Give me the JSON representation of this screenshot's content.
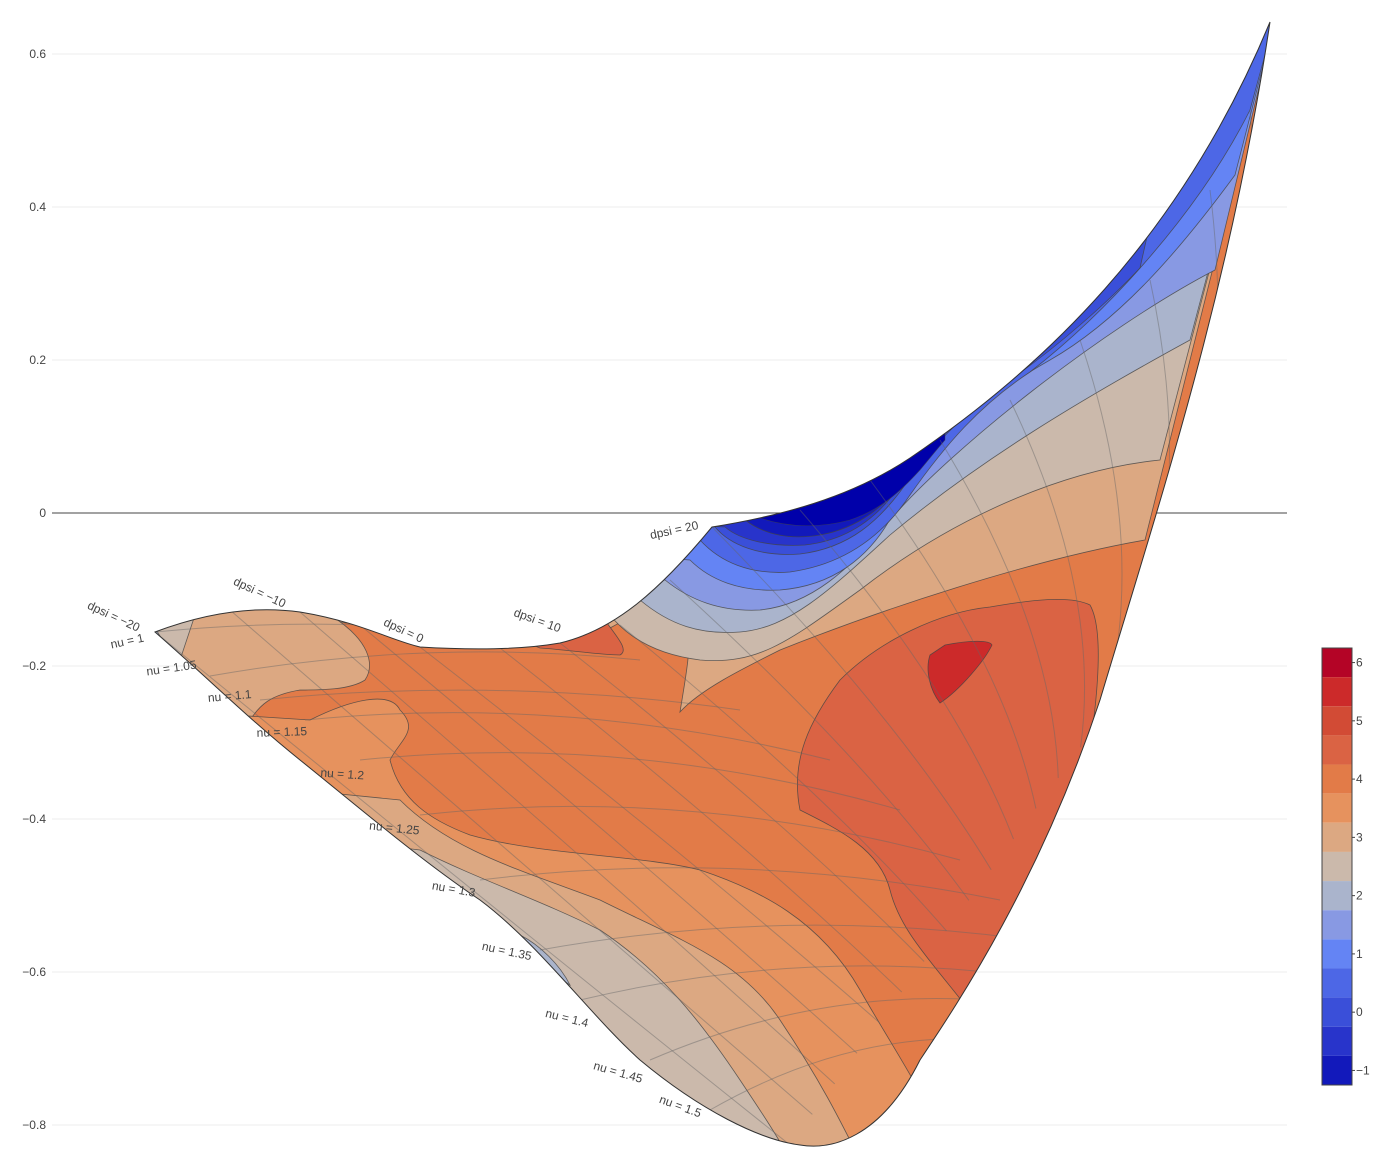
{
  "chart_data": {
    "type": "contour",
    "subtype": "carpet contour (filled)",
    "title": "",
    "xlabel": "",
    "ylabel": "",
    "ylim": [
      -0.82,
      0.65
    ],
    "y_ticks": [
      0.6,
      0.4,
      0.2,
      0,
      -0.2,
      -0.4,
      -0.6,
      -0.8
    ],
    "y_tick_labels": [
      "0.6",
      "0.4",
      "0.2",
      "0",
      "−0.2",
      "−0.4",
      "−0.6",
      "−0.8"
    ],
    "grid": true,
    "zero_line": true,
    "carpet": {
      "a_param": "dpsi",
      "a_values": [
        -20,
        -10,
        0,
        10,
        20
      ],
      "a_labels": [
        "dpsi = −20",
        "dpsi = −10",
        "dpsi = 0",
        "dpsi = 10",
        "dpsi = 20"
      ],
      "b_param": "nu",
      "b_values": [
        1,
        1.05,
        1.1,
        1.15,
        1.2,
        1.25,
        1.3,
        1.35,
        1.4,
        1.45,
        1.5
      ],
      "b_labels": [
        "nu = 1",
        "nu = 1.05",
        "nu = 1.1",
        "nu = 1.15",
        "nu = 1.2",
        "nu = 1.25",
        "nu = 1.3",
        "nu = 1.35",
        "nu = 1.4",
        "nu = 1.45",
        "nu = 1.5"
      ]
    },
    "colorbar": {
      "ticks": [
        6,
        5,
        4,
        3,
        2,
        1,
        0,
        -1
      ],
      "tick_labels": [
        "6",
        "5",
        "4",
        "3",
        "2",
        "1",
        "0",
        "−1"
      ],
      "range": [
        -1.25,
        6.25
      ],
      "contour_step": 0.5,
      "bands": [
        {
          "level": 6.0,
          "color": "#b40426"
        },
        {
          "level": 5.5,
          "color": "#cc2a2a"
        },
        {
          "level": 5.0,
          "color": "#d24b35"
        },
        {
          "level": 4.5,
          "color": "#da6344"
        },
        {
          "level": 4.0,
          "color": "#e27b48"
        },
        {
          "level": 3.5,
          "color": "#e6925e"
        },
        {
          "level": 3.0,
          "color": "#dca882"
        },
        {
          "level": 2.5,
          "color": "#cbb9ab"
        },
        {
          "level": 2.0,
          "color": "#aab4cc"
        },
        {
          "level": 1.5,
          "color": "#8899e3"
        },
        {
          "level": 1.0,
          "color": "#6484f4"
        },
        {
          "level": 0.5,
          "color": "#4d67e6"
        },
        {
          "level": 0.0,
          "color": "#3a4fd9"
        },
        {
          "level": -0.5,
          "color": "#2834cb"
        },
        {
          "level": -1.0,
          "color": "#1219bb"
        },
        {
          "level": -1.5,
          "color": "#0000aa"
        }
      ]
    }
  }
}
